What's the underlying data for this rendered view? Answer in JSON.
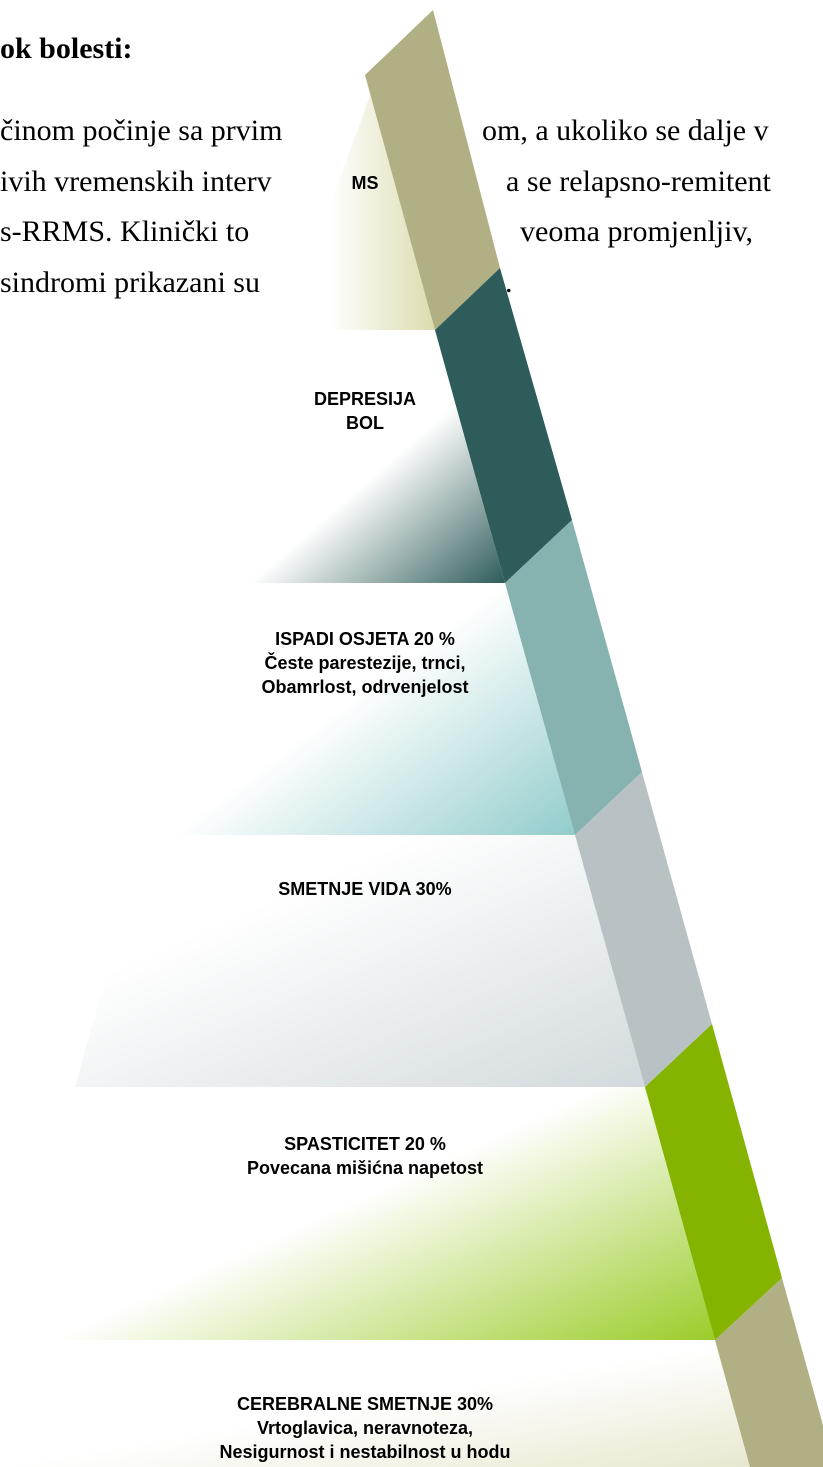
{
  "header": {
    "title": "ok bolesti:"
  },
  "paragraph": {
    "lines": [
      [
        "činom počinje sa prvim",
        "om, a ukoliko se dalje v"
      ],
      [
        "ivih vremenskih interv",
        "a se relapsno-remitent"
      ],
      [
        "s-RRMS. Klinički to",
        "veoma promjenljiv,"
      ],
      [
        "sindromi prikazani su",
        "."
      ]
    ]
  },
  "pyramid": {
    "apex": "MS",
    "tiers": [
      [
        "DEPRESIJA",
        "BOL"
      ],
      [
        "ISPADI  OSJETA  20 %",
        "Česte parestezije, trnci,",
        "Obamrlost, odrvenjelost"
      ],
      [
        "SMETNJE VIDA  30%"
      ],
      [
        "SPASTICITET  20 %",
        "Povecana mišićna napetost"
      ],
      [
        "CEREBRALNE SMETNJE  30%",
        "Vrtoglavica, neravnoteza,",
        "Nesigurnost i nestabilnost u hodu"
      ]
    ]
  }
}
